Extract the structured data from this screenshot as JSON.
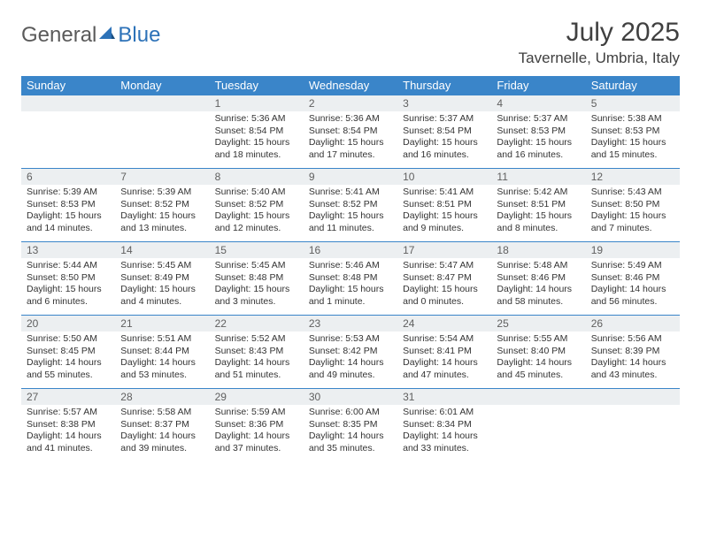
{
  "logo": {
    "part1": "General",
    "part2": "Blue"
  },
  "title": "July 2025",
  "location": "Tavernelle, Umbria, Italy",
  "weekday_header_bg": "#3a85c9",
  "weekday_header_fg": "#ffffff",
  "daynum_bg": "#eceff1",
  "week_divider_color": "#3a85c9",
  "text_color": "#333333",
  "weekdays": [
    "Sunday",
    "Monday",
    "Tuesday",
    "Wednesday",
    "Thursday",
    "Friday",
    "Saturday"
  ],
  "weeks": [
    [
      null,
      null,
      {
        "n": "1",
        "sunrise": "5:36 AM",
        "sunset": "8:54 PM",
        "daylight": "15 hours and 18 minutes."
      },
      {
        "n": "2",
        "sunrise": "5:36 AM",
        "sunset": "8:54 PM",
        "daylight": "15 hours and 17 minutes."
      },
      {
        "n": "3",
        "sunrise": "5:37 AM",
        "sunset": "8:54 PM",
        "daylight": "15 hours and 16 minutes."
      },
      {
        "n": "4",
        "sunrise": "5:37 AM",
        "sunset": "8:53 PM",
        "daylight": "15 hours and 16 minutes."
      },
      {
        "n": "5",
        "sunrise": "5:38 AM",
        "sunset": "8:53 PM",
        "daylight": "15 hours and 15 minutes."
      }
    ],
    [
      {
        "n": "6",
        "sunrise": "5:39 AM",
        "sunset": "8:53 PM",
        "daylight": "15 hours and 14 minutes."
      },
      {
        "n": "7",
        "sunrise": "5:39 AM",
        "sunset": "8:52 PM",
        "daylight": "15 hours and 13 minutes."
      },
      {
        "n": "8",
        "sunrise": "5:40 AM",
        "sunset": "8:52 PM",
        "daylight": "15 hours and 12 minutes."
      },
      {
        "n": "9",
        "sunrise": "5:41 AM",
        "sunset": "8:52 PM",
        "daylight": "15 hours and 11 minutes."
      },
      {
        "n": "10",
        "sunrise": "5:41 AM",
        "sunset": "8:51 PM",
        "daylight": "15 hours and 9 minutes."
      },
      {
        "n": "11",
        "sunrise": "5:42 AM",
        "sunset": "8:51 PM",
        "daylight": "15 hours and 8 minutes."
      },
      {
        "n": "12",
        "sunrise": "5:43 AM",
        "sunset": "8:50 PM",
        "daylight": "15 hours and 7 minutes."
      }
    ],
    [
      {
        "n": "13",
        "sunrise": "5:44 AM",
        "sunset": "8:50 PM",
        "daylight": "15 hours and 6 minutes."
      },
      {
        "n": "14",
        "sunrise": "5:45 AM",
        "sunset": "8:49 PM",
        "daylight": "15 hours and 4 minutes."
      },
      {
        "n": "15",
        "sunrise": "5:45 AM",
        "sunset": "8:48 PM",
        "daylight": "15 hours and 3 minutes."
      },
      {
        "n": "16",
        "sunrise": "5:46 AM",
        "sunset": "8:48 PM",
        "daylight": "15 hours and 1 minute."
      },
      {
        "n": "17",
        "sunrise": "5:47 AM",
        "sunset": "8:47 PM",
        "daylight": "15 hours and 0 minutes."
      },
      {
        "n": "18",
        "sunrise": "5:48 AM",
        "sunset": "8:46 PM",
        "daylight": "14 hours and 58 minutes."
      },
      {
        "n": "19",
        "sunrise": "5:49 AM",
        "sunset": "8:46 PM",
        "daylight": "14 hours and 56 minutes."
      }
    ],
    [
      {
        "n": "20",
        "sunrise": "5:50 AM",
        "sunset": "8:45 PM",
        "daylight": "14 hours and 55 minutes."
      },
      {
        "n": "21",
        "sunrise": "5:51 AM",
        "sunset": "8:44 PM",
        "daylight": "14 hours and 53 minutes."
      },
      {
        "n": "22",
        "sunrise": "5:52 AM",
        "sunset": "8:43 PM",
        "daylight": "14 hours and 51 minutes."
      },
      {
        "n": "23",
        "sunrise": "5:53 AM",
        "sunset": "8:42 PM",
        "daylight": "14 hours and 49 minutes."
      },
      {
        "n": "24",
        "sunrise": "5:54 AM",
        "sunset": "8:41 PM",
        "daylight": "14 hours and 47 minutes."
      },
      {
        "n": "25",
        "sunrise": "5:55 AM",
        "sunset": "8:40 PM",
        "daylight": "14 hours and 45 minutes."
      },
      {
        "n": "26",
        "sunrise": "5:56 AM",
        "sunset": "8:39 PM",
        "daylight": "14 hours and 43 minutes."
      }
    ],
    [
      {
        "n": "27",
        "sunrise": "5:57 AM",
        "sunset": "8:38 PM",
        "daylight": "14 hours and 41 minutes."
      },
      {
        "n": "28",
        "sunrise": "5:58 AM",
        "sunset": "8:37 PM",
        "daylight": "14 hours and 39 minutes."
      },
      {
        "n": "29",
        "sunrise": "5:59 AM",
        "sunset": "8:36 PM",
        "daylight": "14 hours and 37 minutes."
      },
      {
        "n": "30",
        "sunrise": "6:00 AM",
        "sunset": "8:35 PM",
        "daylight": "14 hours and 35 minutes."
      },
      {
        "n": "31",
        "sunrise": "6:01 AM",
        "sunset": "8:34 PM",
        "daylight": "14 hours and 33 minutes."
      },
      null,
      null
    ]
  ],
  "labels": {
    "sunrise": "Sunrise:",
    "sunset": "Sunset:",
    "daylight": "Daylight:"
  }
}
